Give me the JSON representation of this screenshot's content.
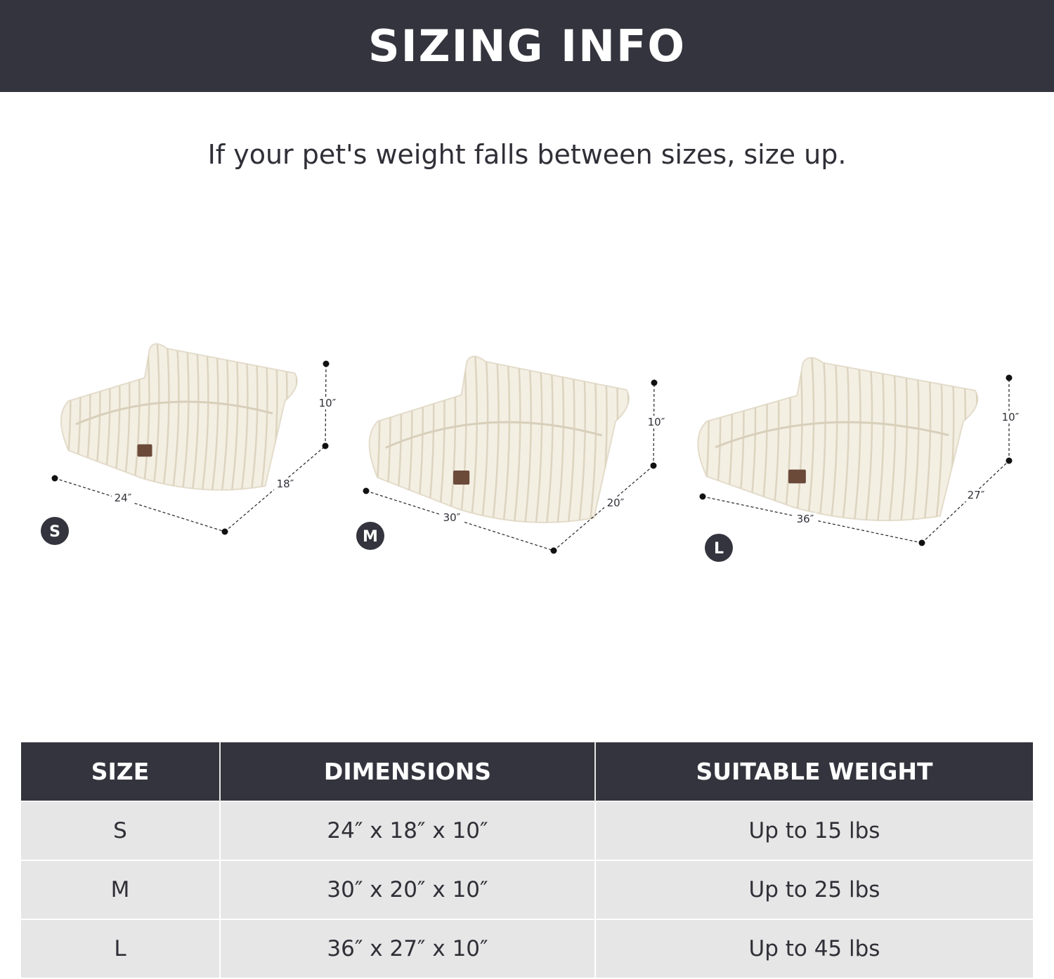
{
  "header": {
    "title": "SIZING INFO"
  },
  "subtitle": "If your pet's weight falls between sizes, size up.",
  "colors": {
    "banner": "#34343e",
    "row_bg": "#e6e6e6",
    "bed": "#f3efe3",
    "badge": "#34343e"
  },
  "products": [
    {
      "size": "S",
      "width": "24″",
      "depth": "18″",
      "height": "10″"
    },
    {
      "size": "M",
      "width": "30″",
      "depth": "20″",
      "height": "10″"
    },
    {
      "size": "L",
      "width": "36″",
      "depth": "27″",
      "height": "10″"
    }
  ],
  "table": {
    "headers": [
      "SIZE",
      "DIMENSIONS",
      "SUITABLE WEIGHT"
    ],
    "rows": [
      {
        "size": "S",
        "dimensions": "24″ x 18″ x 10″",
        "weight": "Up to 15 lbs"
      },
      {
        "size": "M",
        "dimensions": "30″ x 20″ x 10″",
        "weight": "Up to 25 lbs"
      },
      {
        "size": "L",
        "dimensions": "36″ x 27″ x 10″",
        "weight": "Up to 45 lbs"
      }
    ]
  }
}
